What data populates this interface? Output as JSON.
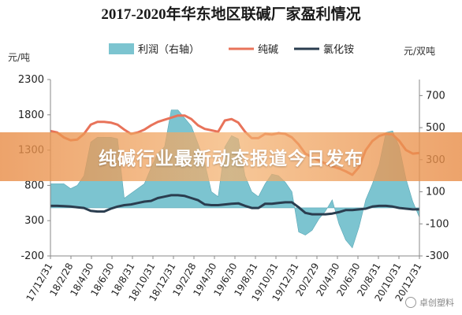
{
  "chart_data": {
    "type": "area",
    "title": "2017-2020年华东地区联碱厂家盈利情况",
    "left_unit": "元/吨",
    "right_unit": "元/双吨",
    "left_ylim": [
      -200,
      2300
    ],
    "left_ticks": [
      "-200",
      "300",
      "800",
      "1300",
      "1800",
      "2300"
    ],
    "right_ylim": [
      -300,
      800
    ],
    "right_ticks": [
      "-300",
      "-100",
      "100",
      "300",
      "500",
      "700"
    ],
    "x_ticks": [
      "17/12/31",
      "18/2/28",
      "18/4/30",
      "18/6/30",
      "18/8/31",
      "18/10/31",
      "18/12/31",
      "19/2/28",
      "19/4/30",
      "19/6/30",
      "19/8/31",
      "19/10/31",
      "19/12/31",
      "20/2/29",
      "20/4/30",
      "20/6/30",
      "20/8/31",
      "20/10/31",
      "20/12/31"
    ],
    "grid": false,
    "legend_position": "top",
    "series": [
      {
        "name": "利润（右轴）",
        "axis": "right",
        "color": "#7cc4d0",
        "values": [
          150,
          150,
          150,
          120,
          140,
          200,
          410,
          440,
          440,
          440,
          430,
          60,
          90,
          120,
          150,
          250,
          340,
          380,
          610,
          610,
          560,
          510,
          400,
          280,
          100,
          70,
          380,
          450,
          430,
          200,
          100,
          70,
          150,
          210,
          200,
          160,
          100,
          -150,
          -170,
          -140,
          -70,
          -20,
          50,
          -100,
          -200,
          -250,
          -120,
          50,
          150,
          270,
          470,
          480,
          380,
          180,
          40,
          -60
        ]
      },
      {
        "name": "纯碱",
        "color": "#e8735a",
        "values": [
          1570,
          1550,
          1480,
          1440,
          1450,
          1530,
          1660,
          1700,
          1700,
          1690,
          1660,
          1590,
          1530,
          1550,
          1590,
          1650,
          1700,
          1730,
          1760,
          1790,
          1790,
          1740,
          1650,
          1600,
          1580,
          1560,
          1720,
          1740,
          1690,
          1560,
          1470,
          1470,
          1530,
          1520,
          1540,
          1530,
          1480,
          1380,
          1250,
          1200,
          1150,
          1110,
          1070,
          1040,
          1000,
          950,
          1060,
          1300,
          1430,
          1500,
          1530,
          1520,
          1430,
          1300,
          1250,
          1260
        ]
      },
      {
        "name": "氯化铵",
        "color": "#2a3d4f",
        "values": [
          510,
          510,
          505,
          500,
          490,
          480,
          440,
          430,
          430,
          470,
          500,
          520,
          530,
          550,
          570,
          580,
          620,
          640,
          660,
          660,
          650,
          620,
          590,
          530,
          520,
          520,
          530,
          540,
          545,
          510,
          480,
          480,
          540,
          540,
          550,
          560,
          560,
          490,
          410,
          390,
          390,
          390,
          400,
          420,
          450,
          450,
          460,
          470,
          500,
          510,
          510,
          500,
          480,
          470,
          460,
          460
        ]
      }
    ]
  },
  "banner": {
    "text": "纯碱行业最新动态报道今日发布"
  },
  "watermark": {
    "text": "卓创塑料"
  }
}
